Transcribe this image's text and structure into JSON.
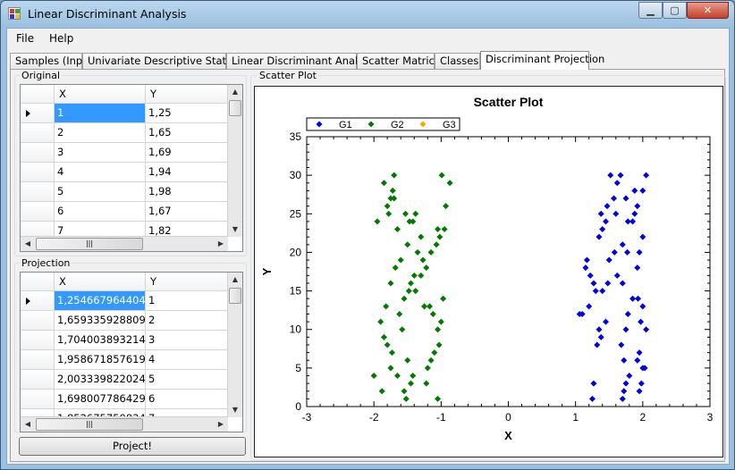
{
  "window": {
    "title": "Linear Discriminant Analysis",
    "min_glyph": "▁",
    "max_glyph": "▢",
    "close_glyph": "✕"
  },
  "menu": {
    "file": "File",
    "help": "Help"
  },
  "tabs": [
    {
      "label": "Samples (Input)"
    },
    {
      "label": "Univariate Descriptive Statistics"
    },
    {
      "label": "Linear Discriminant Analysis"
    },
    {
      "label": "Scatter Matrices"
    },
    {
      "label": "Classes"
    },
    {
      "label": "Discriminant Projection"
    }
  ],
  "original": {
    "label": "Original",
    "columns": [
      "X",
      "Y"
    ],
    "rows": [
      [
        "1",
        "1,25"
      ],
      [
        "2",
        "1,65"
      ],
      [
        "3",
        "1,69"
      ],
      [
        "4",
        "1,94"
      ],
      [
        "5",
        "1,98"
      ],
      [
        "6",
        "1,67"
      ],
      [
        "7",
        "1,82"
      ]
    ]
  },
  "projection": {
    "label": "Projection",
    "columns": [
      "X",
      "Y"
    ],
    "rows": [
      [
        "1,254667964404...",
        "1"
      ],
      [
        "1,659335928809...",
        "2"
      ],
      [
        "1,704003893214...",
        "3"
      ],
      [
        "1,958671857619...",
        "4"
      ],
      [
        "2,003339822024...",
        "5"
      ],
      [
        "1,698007786429...",
        "6"
      ],
      [
        "1,852675750834...",
        "7"
      ]
    ]
  },
  "project_button": "Project!",
  "scatter_group_label": "Scatter Plot",
  "colors": {
    "G1": "#0000e0",
    "G2": "#007a00",
    "G3": "#e8b000",
    "selection": "#3399ff"
  },
  "chart_data": {
    "type": "scatter",
    "title": "Scatter Plot",
    "xlabel": "X",
    "ylabel": "Y",
    "xlim": [
      -3,
      3
    ],
    "ylim": [
      0,
      35
    ],
    "xticks": [
      "-3",
      "-2",
      "-1",
      "0",
      "1",
      "2",
      "3"
    ],
    "yticks": [
      "0",
      "5",
      "10",
      "15",
      "20",
      "25",
      "30",
      "35"
    ],
    "legend_position": "top-left",
    "series": [
      {
        "name": "G1",
        "color": "#0000e0",
        "points": [
          [
            1.25,
            1
          ],
          [
            1.27,
            3
          ],
          [
            1.7,
            1
          ],
          [
            1.72,
            2
          ],
          [
            1.75,
            3
          ],
          [
            1.95,
            2
          ],
          [
            1.98,
            3
          ],
          [
            1.8,
            4
          ],
          [
            2.0,
            5
          ],
          [
            2.03,
            5
          ],
          [
            1.92,
            6
          ],
          [
            1.95,
            7
          ],
          [
            1.72,
            6
          ],
          [
            1.68,
            8
          ],
          [
            1.32,
            8
          ],
          [
            1.38,
            9
          ],
          [
            1.35,
            10
          ],
          [
            1.45,
            11
          ],
          [
            1.75,
            10
          ],
          [
            1.78,
            12
          ],
          [
            1.97,
            11
          ],
          [
            2.05,
            10
          ],
          [
            1.85,
            14
          ],
          [
            1.93,
            14
          ],
          [
            2.0,
            13
          ],
          [
            1.06,
            12
          ],
          [
            1.1,
            12
          ],
          [
            1.2,
            13
          ],
          [
            1.3,
            15
          ],
          [
            1.4,
            15
          ],
          [
            1.48,
            16
          ],
          [
            1.62,
            17
          ],
          [
            1.7,
            16
          ],
          [
            1.92,
            18
          ],
          [
            1.27,
            16
          ],
          [
            1.22,
            17
          ],
          [
            1.15,
            18
          ],
          [
            1.17,
            19
          ],
          [
            1.5,
            19
          ],
          [
            1.58,
            20
          ],
          [
            1.7,
            21
          ],
          [
            1.77,
            20
          ],
          [
            1.95,
            20
          ],
          [
            2.0,
            22
          ],
          [
            1.35,
            22
          ],
          [
            1.4,
            23
          ],
          [
            1.45,
            24
          ],
          [
            1.6,
            25
          ],
          [
            1.78,
            24
          ],
          [
            1.85,
            24
          ],
          [
            1.92,
            26
          ],
          [
            1.88,
            25
          ],
          [
            1.38,
            25
          ],
          [
            1.47,
            26
          ],
          [
            1.57,
            27
          ],
          [
            1.62,
            29
          ],
          [
            1.75,
            27
          ],
          [
            1.88,
            28
          ],
          [
            2.0,
            28
          ],
          [
            1.67,
            30
          ],
          [
            1.52,
            30
          ],
          [
            2.05,
            30
          ]
        ]
      },
      {
        "name": "G2",
        "color": "#007a00",
        "points": [
          [
            -1.85,
            29
          ],
          [
            -1.7,
            30
          ],
          [
            -1.72,
            28
          ],
          [
            -1.75,
            27
          ],
          [
            -1.7,
            27
          ],
          [
            -1.78,
            25
          ],
          [
            -1.8,
            26
          ],
          [
            -1.95,
            24
          ],
          [
            -1.53,
            25
          ],
          [
            -1.47,
            24
          ],
          [
            -1.42,
            24
          ],
          [
            -1.38,
            25
          ],
          [
            -1.65,
            23
          ],
          [
            -1.3,
            22
          ],
          [
            -1.5,
            21
          ],
          [
            -1.6,
            19
          ],
          [
            -1.27,
            19
          ],
          [
            -1.22,
            18
          ],
          [
            -1.15,
            20
          ],
          [
            -1.07,
            21
          ],
          [
            -1.05,
            23
          ],
          [
            -1.02,
            22
          ],
          [
            -0.95,
            23
          ],
          [
            -0.93,
            26
          ],
          [
            -0.87,
            29
          ],
          [
            -0.99,
            30
          ],
          [
            -1.35,
            20
          ],
          [
            -1.4,
            17
          ],
          [
            -1.45,
            16
          ],
          [
            -1.38,
            15
          ],
          [
            -1.3,
            17
          ],
          [
            -1.82,
            13
          ],
          [
            -1.75,
            16
          ],
          [
            -1.68,
            18
          ],
          [
            -1.55,
            14
          ],
          [
            -1.48,
            15
          ],
          [
            -1.62,
            12
          ],
          [
            -1.58,
            10
          ],
          [
            -1.25,
            13
          ],
          [
            -1.17,
            13
          ],
          [
            -1.12,
            12
          ],
          [
            -1.05,
            10
          ],
          [
            -0.97,
            14
          ],
          [
            -1.0,
            11
          ],
          [
            -1.03,
            8
          ],
          [
            -1.1,
            7
          ],
          [
            -1.15,
            6
          ],
          [
            -1.2,
            5
          ],
          [
            -1.22,
            3
          ],
          [
            -1.05,
            1
          ],
          [
            -1.42,
            4
          ],
          [
            -1.45,
            3
          ],
          [
            -1.5,
            6
          ],
          [
            -1.55,
            2
          ],
          [
            -1.65,
            4
          ],
          [
            -1.75,
            5
          ],
          [
            -1.8,
            8
          ],
          [
            -1.85,
            9
          ],
          [
            -1.9,
            11
          ],
          [
            -1.73,
            7
          ],
          [
            -2.0,
            4
          ],
          [
            -1.88,
            2
          ],
          [
            -1.52,
            1
          ]
        ]
      },
      {
        "name": "G3",
        "color": "#e8b000",
        "points": []
      }
    ]
  }
}
